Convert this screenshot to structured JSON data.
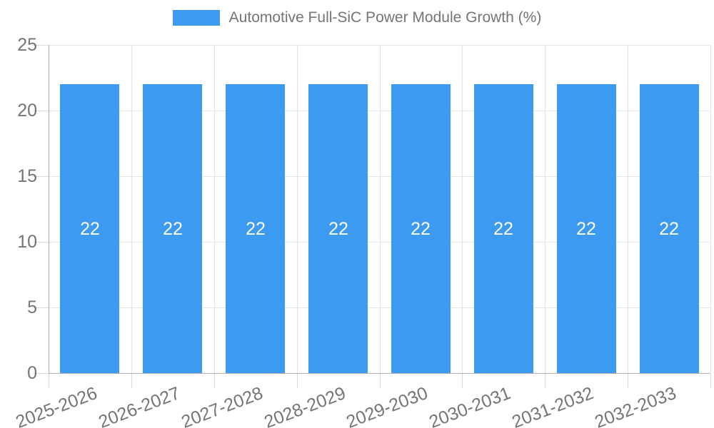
{
  "legend": {
    "label": "Automotive Full-SiC Power Module Growth (%)"
  },
  "chart_data": {
    "type": "bar",
    "title": "Automotive Full-SiC Power Module Growth (%)",
    "categories": [
      "2025-2026",
      "2026-2027",
      "2027-2028",
      "2028-2029",
      "2029-2030",
      "2030-2031",
      "2031-2032",
      "2032-2033"
    ],
    "values": [
      22,
      22,
      22,
      22,
      22,
      22,
      22,
      22
    ],
    "value_labels": [
      "22",
      "22",
      "22",
      "22",
      "22",
      "22",
      "22",
      "22"
    ],
    "ytick_labels": [
      "0",
      "5",
      "10",
      "15",
      "20",
      "25"
    ],
    "yticks": [
      0,
      5,
      10,
      15,
      20,
      25
    ],
    "ylim": [
      0,
      25
    ],
    "xlabel": "",
    "ylabel": "",
    "grid": true,
    "legend_position": "top-center",
    "colors": {
      "bar": "#3C9AF0",
      "value_label": "#FFFFFF",
      "axis_text": "#757575",
      "legend_text": "#757575",
      "gridline": "#E6E6E6",
      "axis_line": "#B0B0B0",
      "tick": "#D9D9D9",
      "background": "#FFFFFF"
    }
  }
}
